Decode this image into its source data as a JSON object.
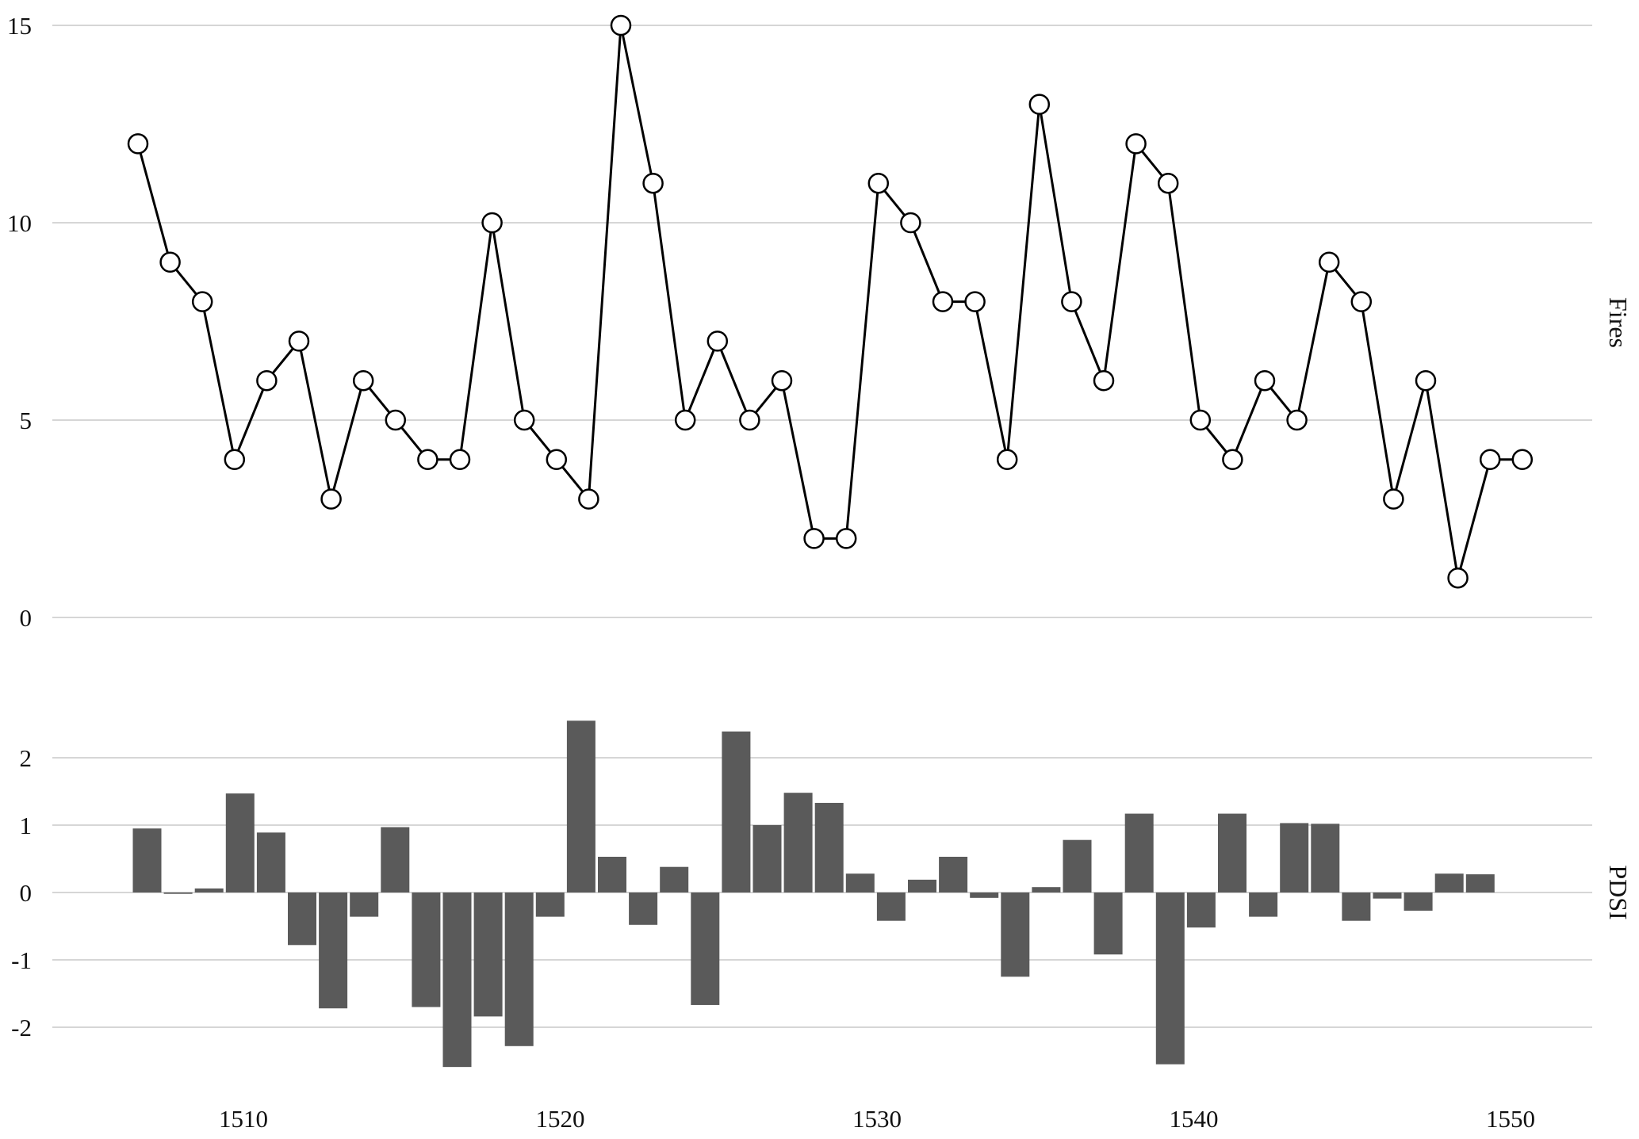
{
  "chart_data": [
    {
      "type": "line",
      "ylabel": "Fires",
      "ylim": [
        0,
        15
      ],
      "yticks": [
        0,
        5,
        10,
        15
      ],
      "x": [
        1507,
        1508,
        1509,
        1510,
        1511,
        1512,
        1513,
        1514,
        1515,
        1516,
        1517,
        1518,
        1519,
        1520,
        1521,
        1522,
        1523,
        1524,
        1525,
        1526,
        1527,
        1528,
        1529,
        1530,
        1531,
        1532,
        1533,
        1534,
        1535,
        1536,
        1537,
        1538,
        1539,
        1540,
        1541,
        1542,
        1543,
        1544,
        1545,
        1546,
        1547,
        1548,
        1549,
        1550
      ],
      "values": [
        12,
        9,
        8,
        4,
        6,
        7,
        3,
        6,
        5,
        4,
        4,
        10,
        5,
        4,
        3,
        15,
        11,
        5,
        7,
        5,
        6,
        2,
        2,
        11,
        10,
        8,
        8,
        4,
        13,
        8,
        6,
        12,
        11,
        5,
        4,
        6,
        5,
        9,
        8,
        3,
        6,
        1,
        4,
        4
      ]
    },
    {
      "type": "bar",
      "ylabel": "PDSI",
      "ylim": [
        -2.7,
        2.7
      ],
      "yticks": [
        -2,
        -1,
        0,
        1,
        2
      ],
      "color": "#5a5a5a",
      "x": [
        1507,
        1508,
        1509,
        1510,
        1511,
        1512,
        1513,
        1514,
        1515,
        1516,
        1517,
        1518,
        1519,
        1520,
        1521,
        1522,
        1523,
        1524,
        1525,
        1526,
        1527,
        1528,
        1529,
        1530,
        1531,
        1532,
        1533,
        1534,
        1535,
        1536,
        1537,
        1538,
        1539,
        1540,
        1541,
        1542,
        1543,
        1544,
        1545,
        1546,
        1547,
        1548,
        1549,
        1550
      ],
      "values": [
        0.95,
        -0.02,
        0.06,
        1.47,
        0.89,
        -0.78,
        -1.72,
        -0.36,
        0.97,
        -1.7,
        -2.59,
        -1.84,
        -2.28,
        -0.36,
        2.55,
        0.53,
        -0.48,
        0.38,
        -1.67,
        2.39,
        1.0,
        1.48,
        1.33,
        0.28,
        -0.42,
        0.19,
        0.53,
        -0.08,
        -1.25,
        0.08,
        0.78,
        -0.92,
        1.17,
        -2.55,
        -0.52,
        1.17,
        -0.36,
        1.03,
        1.02,
        -0.42,
        -0.09,
        -0.27,
        0.28,
        0.27
      ],
      "xticks": [
        1510,
        1520,
        1530,
        1540,
        1550
      ]
    }
  ]
}
